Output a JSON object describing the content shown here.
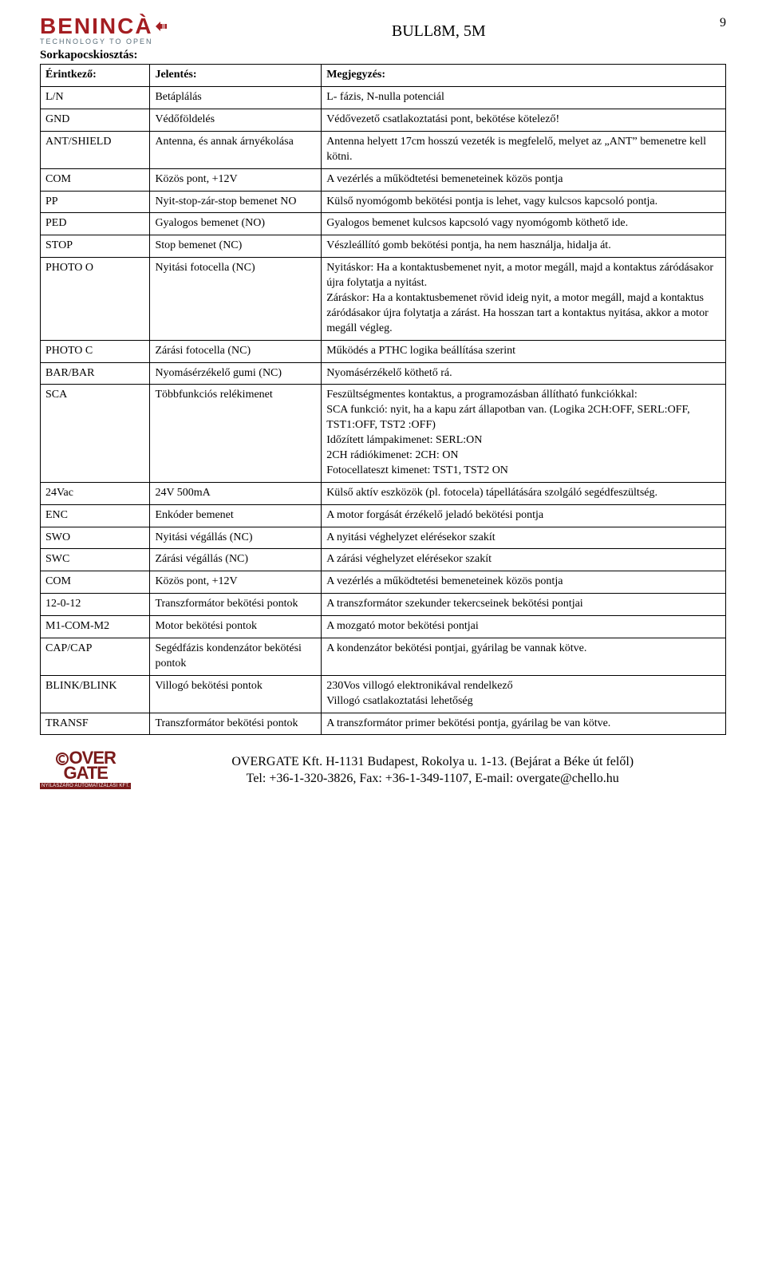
{
  "page_number": "9",
  "brand": {
    "name": "BENINCÀ",
    "tagline": "TECHNOLOGY TO OPEN"
  },
  "doc_title": "BULL8M, 5M",
  "section_title": "Sorkapocskiosztás:",
  "table": {
    "headers": [
      "Érintkező:",
      "Jelentés:",
      "Megjegyzés:"
    ],
    "rows": [
      [
        "L/N",
        "Betáplálás",
        "L- fázis, N-nulla potenciál"
      ],
      [
        "GND",
        "Védőföldelés",
        "Védővezető csatlakoztatási pont, bekötése kötelező!"
      ],
      [
        "ANT/SHIELD",
        "Antenna, és annak árnyékolása",
        "Antenna helyett 17cm hosszú vezeték is megfelelő, melyet az „ANT” bemenetre kell kötni."
      ],
      [
        "COM",
        "Közös pont, +12V",
        "A vezérlés a működtetési bemeneteinek közös pontja"
      ],
      [
        "PP",
        "Nyit-stop-zár-stop bemenet NO",
        "Külső nyomógomb bekötési pontja is lehet, vagy kulcsos kapcsoló pontja."
      ],
      [
        "PED",
        "Gyalogos bemenet (NO)",
        "Gyalogos bemenet kulcsos kapcsoló vagy nyomógomb köthető ide."
      ],
      [
        "STOP",
        "Stop bemenet (NC)",
        "Vészleállító gomb bekötési pontja, ha nem használja, hidalja át."
      ],
      [
        "PHOTO O",
        "Nyitási fotocella (NC)",
        "Nyitáskor: Ha a kontaktusbemenet nyit, a motor megáll, majd a kontaktus záródásakor újra folytatja a nyitást.\nZáráskor: Ha a kontaktusbemenet rövid ideig nyit, a motor megáll, majd a kontaktus záródásakor újra folytatja a zárást. Ha hosszan tart a kontaktus nyitása, akkor a motor megáll végleg."
      ],
      [
        "PHOTO C",
        "Zárási fotocella (NC)",
        "Működés a PTHC logika beállítása szerint"
      ],
      [
        "BAR/BAR",
        "Nyomásérzékelő gumi (NC)",
        "Nyomásérzékelő köthető rá."
      ],
      [
        "SCA",
        "Többfunkciós relékimenet",
        "Feszültségmentes kontaktus, a programozásban állítható funkciókkal:\nSCA funkció: nyit, ha a kapu zárt állapotban van. (Logika 2CH:OFF, SERL:OFF, TST1:OFF, TST2 :OFF)\nIdőzített lámpakimenet: SERL:ON\n2CH rádiókimenet: 2CH: ON\nFotocellateszt kimenet: TST1, TST2 ON"
      ],
      [
        "24Vac",
        "24V 500mA",
        "Külső aktív eszközök (pl. fotocela) tápellátására szolgáló segédfeszültség."
      ],
      [
        "ENC",
        "Enkóder bemenet",
        "A motor forgását érzékelő jeladó bekötési pontja"
      ],
      [
        "SWO",
        "Nyitási végállás (NC)",
        "A nyitási véghelyzet elérésekor szakít"
      ],
      [
        "SWC",
        "Zárási végállás (NC)",
        "A zárási véghelyzet elérésekor szakít"
      ],
      [
        "COM",
        "Közös pont, +12V",
        "A vezérlés a működtetési bemeneteinek közös pontja"
      ],
      [
        "12-0-12",
        "Transzformátor bekötési pontok",
        "A transzformátor szekunder tekercseinek bekötési pontjai"
      ],
      [
        "M1-COM-M2",
        "Motor bekötési pontok",
        "A mozgató motor bekötési pontjai"
      ],
      [
        "CAP/CAP",
        "Segédfázis kondenzátor bekötési pontok",
        "A kondenzátor bekötési pontjai, gyárilag be vannak kötve."
      ],
      [
        "BLINK/BLINK",
        "Villogó bekötési pontok",
        "230Vos villogó elektronikával rendelkező\nVillogó csatlakoztatási lehetőség"
      ],
      [
        "TRANSF",
        "Transzformátor bekötési pontok",
        "A transzformátor primer bekötési pontja, gyárilag be van kötve."
      ]
    ]
  },
  "footer": {
    "company_line": "OVERGATE Kft. H-1131 Budapest, Rokolya u. 1-13. (Bejárat a Béke út felől)",
    "contact_line": "Tel: +36-1-320-3826, Fax: +36-1-349-1107, E-mail: overgate@chello.hu",
    "logo_top": "OVER",
    "logo_bottom": "GATE",
    "logo_bar": "NYÍLÁSZÁRÓ AUTOMATIZÁLÁSI KFT."
  }
}
